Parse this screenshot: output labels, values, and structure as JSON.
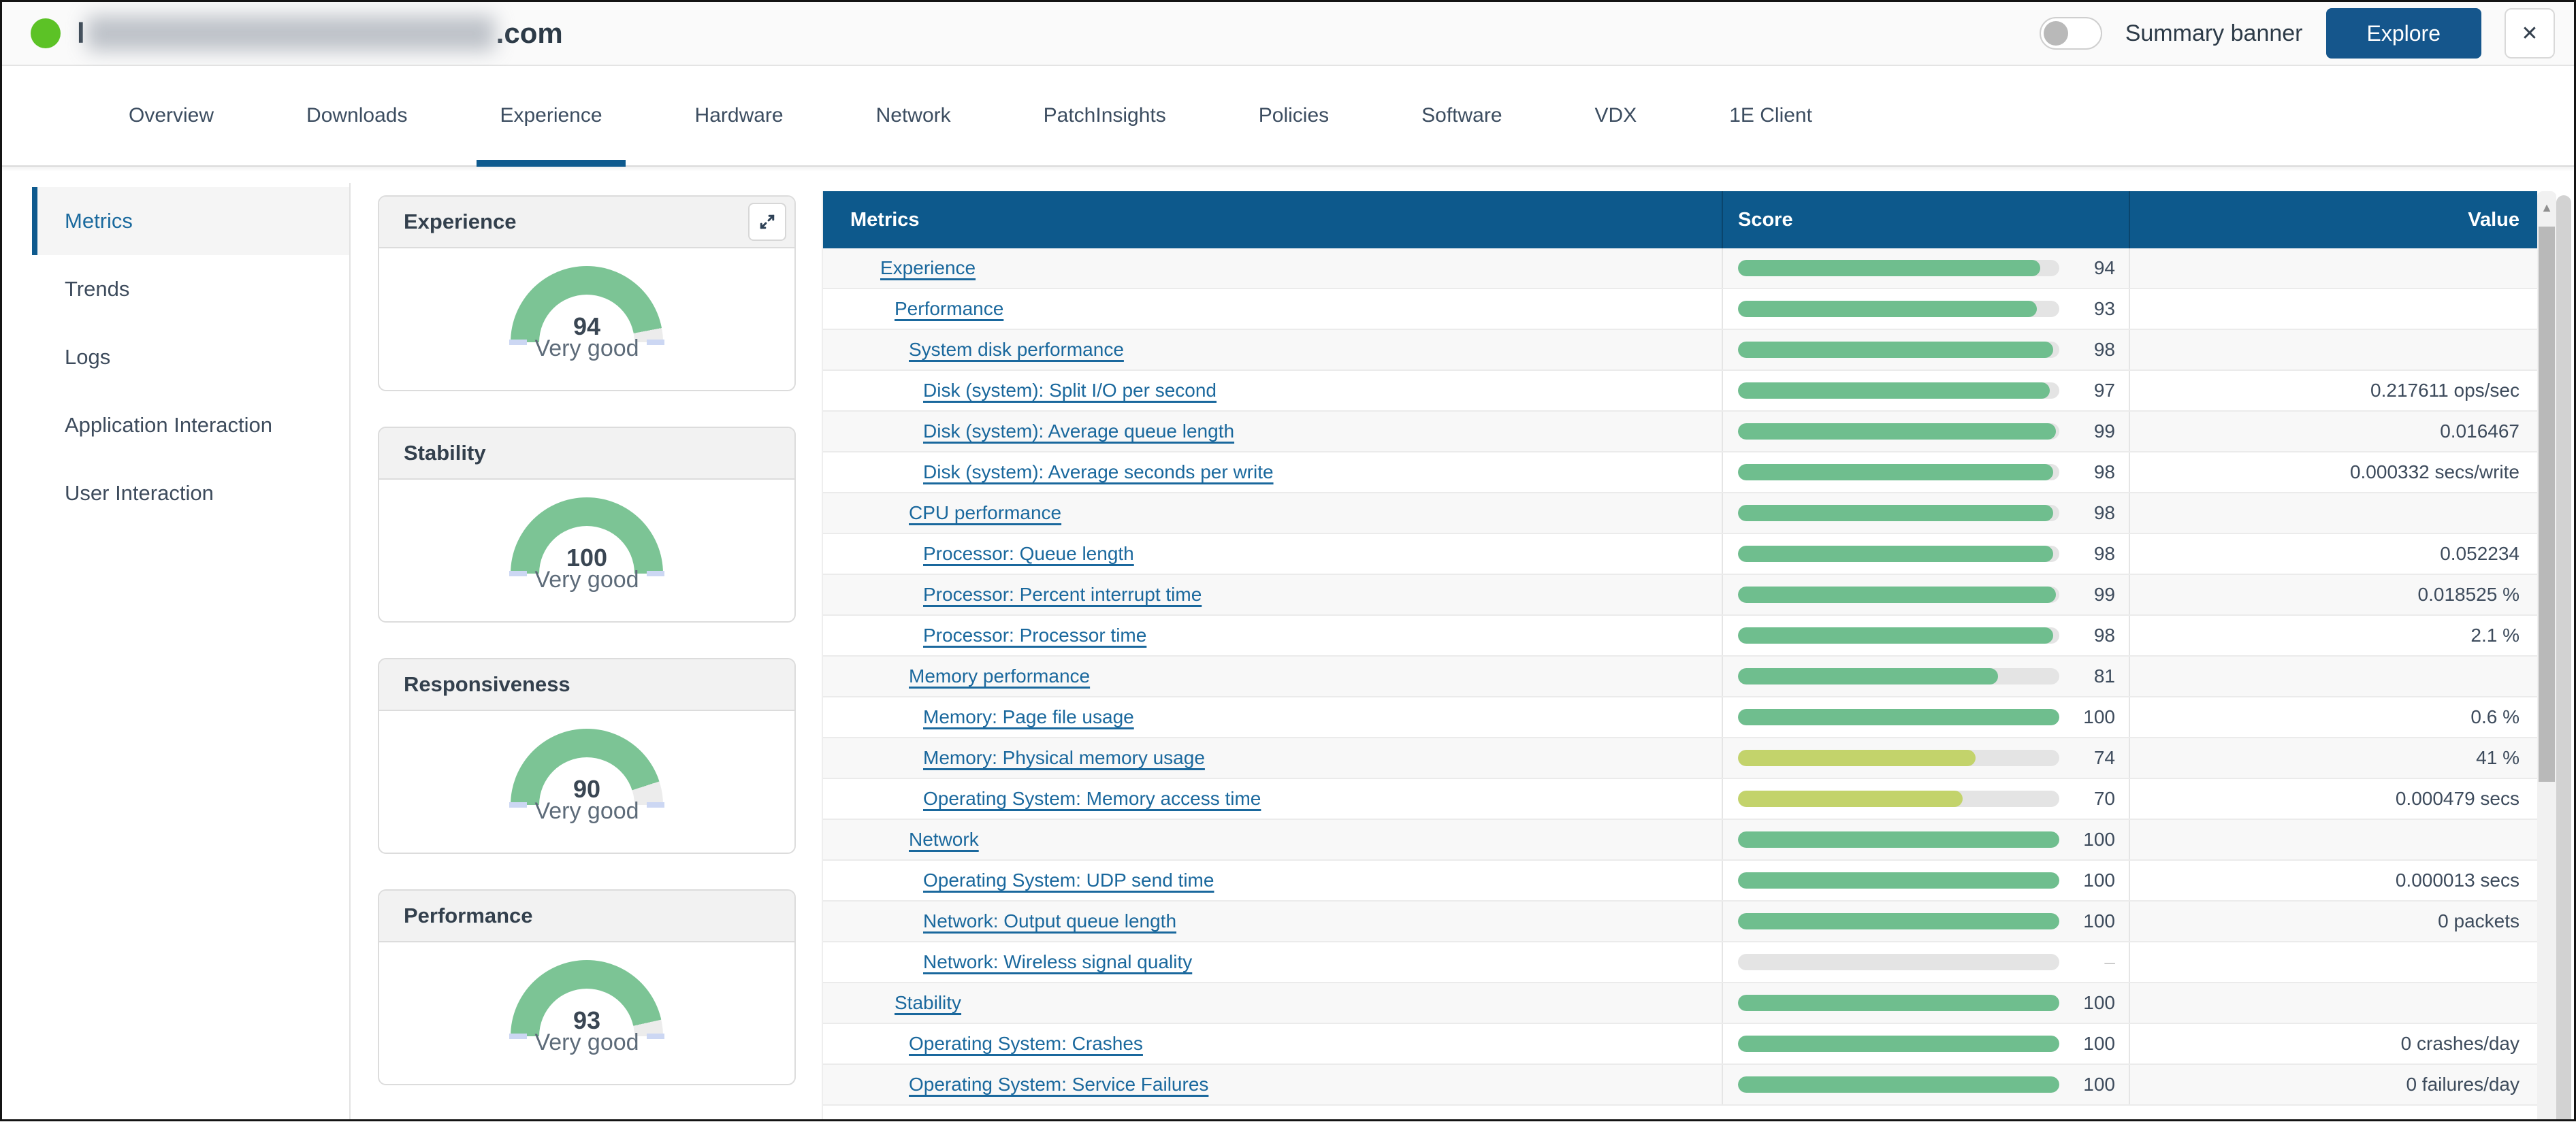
{
  "window": {
    "title_prefix": "l",
    "title_suffix": ".com",
    "status": "online"
  },
  "topbar": {
    "summary_banner_label": "Summary banner",
    "summary_banner_on": false,
    "explore_label": "Explore",
    "close_label": "✕"
  },
  "icons": {
    "scroll_up_arrow": "▲"
  },
  "tabs": [
    {
      "label": "Overview",
      "active": false
    },
    {
      "label": "Downloads",
      "active": false
    },
    {
      "label": "Experience",
      "active": true
    },
    {
      "label": "Hardware",
      "active": false
    },
    {
      "label": "Network",
      "active": false
    },
    {
      "label": "PatchInsights",
      "active": false
    },
    {
      "label": "Policies",
      "active": false
    },
    {
      "label": "Software",
      "active": false
    },
    {
      "label": "VDX",
      "active": false
    },
    {
      "label": "1E Client",
      "active": false
    }
  ],
  "sidebar": {
    "items": [
      {
        "label": "Metrics",
        "active": true
      },
      {
        "label": "Trends",
        "active": false
      },
      {
        "label": "Logs",
        "active": false
      },
      {
        "label": "Application Interaction",
        "active": false
      },
      {
        "label": "User Interaction",
        "active": false
      }
    ]
  },
  "gauges": [
    {
      "title": "Experience",
      "score": 94,
      "label": "Very good",
      "expand_button": true
    },
    {
      "title": "Stability",
      "score": 100,
      "label": "Very good",
      "expand_button": false
    },
    {
      "title": "Responsiveness",
      "score": 90,
      "label": "Very good",
      "expand_button": false
    },
    {
      "title": "Performance",
      "score": 93,
      "label": "Very good",
      "expand_button": false
    }
  ],
  "table": {
    "columns": [
      "Metrics",
      "Score",
      "Value"
    ],
    "no_score_placeholder": "–",
    "rows": [
      {
        "label": "Experience",
        "level": 1,
        "score": 94,
        "value": ""
      },
      {
        "label": "Performance",
        "level": 2,
        "score": 93,
        "value": ""
      },
      {
        "label": "System disk performance",
        "level": 3,
        "score": 98,
        "value": ""
      },
      {
        "label": "Disk (system): Split I/O per second",
        "level": 4,
        "score": 97,
        "value": "0.217611 ops/sec"
      },
      {
        "label": "Disk (system): Average queue length",
        "level": 4,
        "score": 99,
        "value": "0.016467"
      },
      {
        "label": "Disk (system): Average seconds per write",
        "level": 4,
        "score": 98,
        "value": "0.000332 secs/write"
      },
      {
        "label": "CPU performance",
        "level": 3,
        "score": 98,
        "value": ""
      },
      {
        "label": "Processor: Queue length",
        "level": 4,
        "score": 98,
        "value": "0.052234"
      },
      {
        "label": "Processor: Percent interrupt time",
        "level": 4,
        "score": 99,
        "value": "0.018525 %"
      },
      {
        "label": "Processor: Processor time",
        "level": 4,
        "score": 98,
        "value": "2.1 %"
      },
      {
        "label": "Memory performance",
        "level": 3,
        "score": 81,
        "value": ""
      },
      {
        "label": "Memory: Page file usage",
        "level": 4,
        "score": 100,
        "value": "0.6 %"
      },
      {
        "label": "Memory: Physical memory usage",
        "level": 4,
        "score": 74,
        "value": "41 %"
      },
      {
        "label": "Operating System: Memory access time",
        "level": 4,
        "score": 70,
        "value": "0.000479 secs"
      },
      {
        "label": "Network",
        "level": 3,
        "score": 100,
        "value": ""
      },
      {
        "label": "Operating System: UDP send time",
        "level": 4,
        "score": 100,
        "value": "0.000013 secs"
      },
      {
        "label": "Network: Output queue length",
        "level": 4,
        "score": 100,
        "value": "0 packets"
      },
      {
        "label": "Network: Wireless signal quality",
        "level": 4,
        "score": null,
        "value": ""
      },
      {
        "label": "Stability",
        "level": 2,
        "score": 100,
        "value": ""
      },
      {
        "label": "Operating System: Crashes",
        "level": 3,
        "score": 100,
        "value": "0 crashes/day"
      },
      {
        "label": "Operating System: Service Failures",
        "level": 3,
        "score": 100,
        "value": "0 failures/day"
      }
    ]
  },
  "colors": {
    "accent_blue": "#0d598c",
    "button_blue": "#15568c",
    "link_blue": "#1a689d",
    "bar_green": "#6fbe8e",
    "bar_warn": "#c3d36b",
    "gauge_green": "#7cc495",
    "status_green": "#5cc226",
    "score_warn_below": 75
  }
}
